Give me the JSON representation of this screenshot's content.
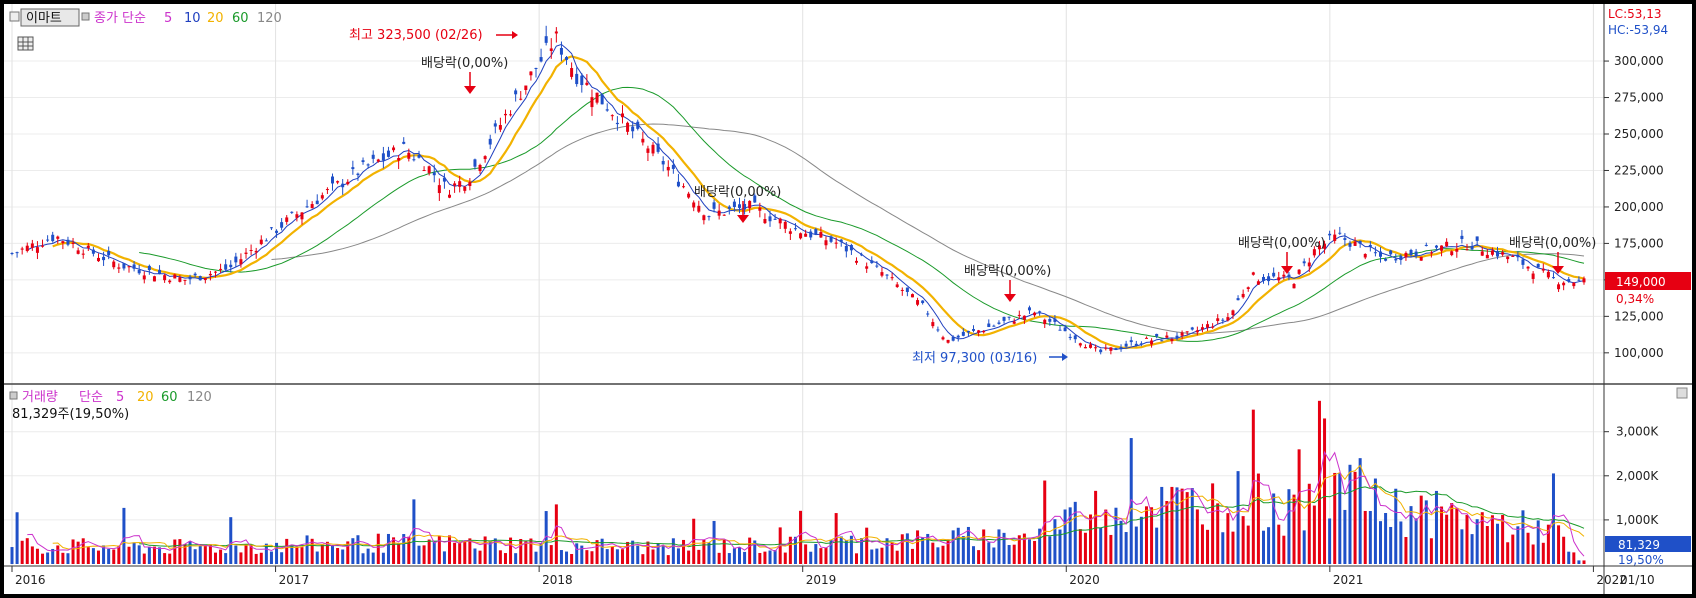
{
  "legend_price": {
    "btn_label": "이마트",
    "series_label": "종가 단순",
    "periods": [
      "5",
      "10",
      "20",
      "60",
      "120"
    ],
    "period_colors": [
      "#cc33cc",
      "#1f3fbf",
      "#f2b200",
      "#1a9a2a",
      "#888888"
    ]
  },
  "legend_volume": {
    "series_label": "거래량",
    "series_label2": "단순",
    "periods": [
      "5",
      "20",
      "60",
      "120"
    ],
    "period_colors": [
      "#cc33cc",
      "#f2b200",
      "#1a9a2a",
      "#888888"
    ],
    "current_text": "81,329주(19,50%)"
  },
  "right_info": {
    "lc": "LC:53,13",
    "hc": "HC:-53,94"
  },
  "annotations": {
    "high": "최고 323,500 (02/26)",
    "low": "최저 97,300 (03/16)",
    "dividend": "배당락(0,00%)"
  },
  "current_price": {
    "value": "149,000",
    "change": "0,34%"
  },
  "current_volume": {
    "value": "81,329",
    "ratio": "19,50%"
  },
  "time_axis": {
    "labels": [
      "2016",
      "2017",
      "2018",
      "2019",
      "2020",
      "2021",
      "2022"
    ],
    "end_label": "01/10"
  },
  "colors": {
    "up": "#e60012",
    "down": "#1f50c8",
    "ma5": "#cc33cc",
    "ma10": "#1f3fbf",
    "ma20": "#f2b200",
    "ma60": "#1a9a2a",
    "ma120": "#888888"
  },
  "chart_data": [
    {
      "type": "candlestick",
      "title": "이마트",
      "y_ticks": [
        100000,
        125000,
        150000,
        175000,
        200000,
        225000,
        250000,
        275000,
        300000
      ],
      "y_tick_labels": [
        "100,000",
        "125,000",
        "150,000",
        "175,000",
        "200,000",
        "225,000",
        "250,000",
        "275,000",
        "300,000"
      ],
      "ylim": [
        80000,
        335000
      ],
      "x_labels": [
        "2016",
        "2017",
        "2018",
        "2019",
        "2020",
        "2021",
        "2022"
      ],
      "approx_close_anchors": [
        [
          "2016-01",
          168000
        ],
        [
          "2016-03",
          180000
        ],
        [
          "2016-06",
          160000
        ],
        [
          "2016-09",
          150000
        ],
        [
          "2016-11",
          158000
        ],
        [
          "2017-01",
          183000
        ],
        [
          "2017-03",
          205000
        ],
        [
          "2017-05",
          225000
        ],
        [
          "2017-07",
          240000
        ],
        [
          "2017-08",
          230000
        ],
        [
          "2017-09",
          212000
        ],
        [
          "2017-10",
          220000
        ],
        [
          "2017-12",
          270000
        ],
        [
          "2018-02",
          316000
        ],
        [
          "2018-03",
          290000
        ],
        [
          "2018-05",
          260000
        ],
        [
          "2018-07",
          230000
        ],
        [
          "2018-09",
          195000
        ],
        [
          "2018-11",
          200000
        ],
        [
          "2019-01",
          185000
        ],
        [
          "2019-03",
          175000
        ],
        [
          "2019-05",
          155000
        ],
        [
          "2019-07",
          130000
        ],
        [
          "2019-08",
          108000
        ],
        [
          "2019-10",
          118000
        ],
        [
          "2019-12",
          128000
        ],
        [
          "2020-02",
          110000
        ],
        [
          "2020-03",
          100000
        ],
        [
          "2020-05",
          108000
        ],
        [
          "2020-07",
          112000
        ],
        [
          "2020-09",
          125000
        ],
        [
          "2020-10",
          152000
        ],
        [
          "2020-12",
          150000
        ],
        [
          "2021-01",
          172000
        ],
        [
          "2021-02",
          180000
        ],
        [
          "2021-04",
          165000
        ],
        [
          "2021-06",
          170000
        ],
        [
          "2021-08",
          175000
        ],
        [
          "2021-10",
          165000
        ],
        [
          "2021-12",
          150000
        ],
        [
          "2022-01",
          149000
        ]
      ],
      "moving_averages": [
        "5",
        "10",
        "20",
        "60",
        "120"
      ]
    },
    {
      "type": "bar",
      "title": "거래량",
      "y_ticks": [
        1000,
        2000,
        3000
      ],
      "y_tick_labels": [
        "1,000K",
        "2,000K",
        "3,000K"
      ],
      "ylim": [
        0,
        3900
      ],
      "units": "K",
      "approx_volume_anchors": [
        [
          "2016-01",
          450
        ],
        [
          "2016-09",
          420
        ],
        [
          "2017-06",
          520
        ],
        [
          "2018-01",
          500
        ],
        [
          "2018-06",
          420
        ],
        [
          "2019-01",
          480
        ],
        [
          "2019-08",
          620
        ],
        [
          "2019-12",
          700
        ],
        [
          "2020-03",
          1400
        ],
        [
          "2020-07",
          1500
        ],
        [
          "2020-10",
          1650
        ],
        [
          "2020-12",
          1200
        ],
        [
          "2021-01",
          2300
        ],
        [
          "2021-03",
          1500
        ],
        [
          "2021-07",
          1200
        ],
        [
          "2021-10",
          950
        ],
        [
          "2021-12",
          800
        ],
        [
          "2022-01",
          81
        ]
      ],
      "highlight_peaks": [
        [
          "2020-10",
          3500
        ],
        [
          "2021-01",
          3700
        ],
        [
          "2021-01b",
          3300
        ],
        [
          "2020-12",
          2600
        ],
        [
          "2021-03",
          2400
        ]
      ]
    }
  ]
}
